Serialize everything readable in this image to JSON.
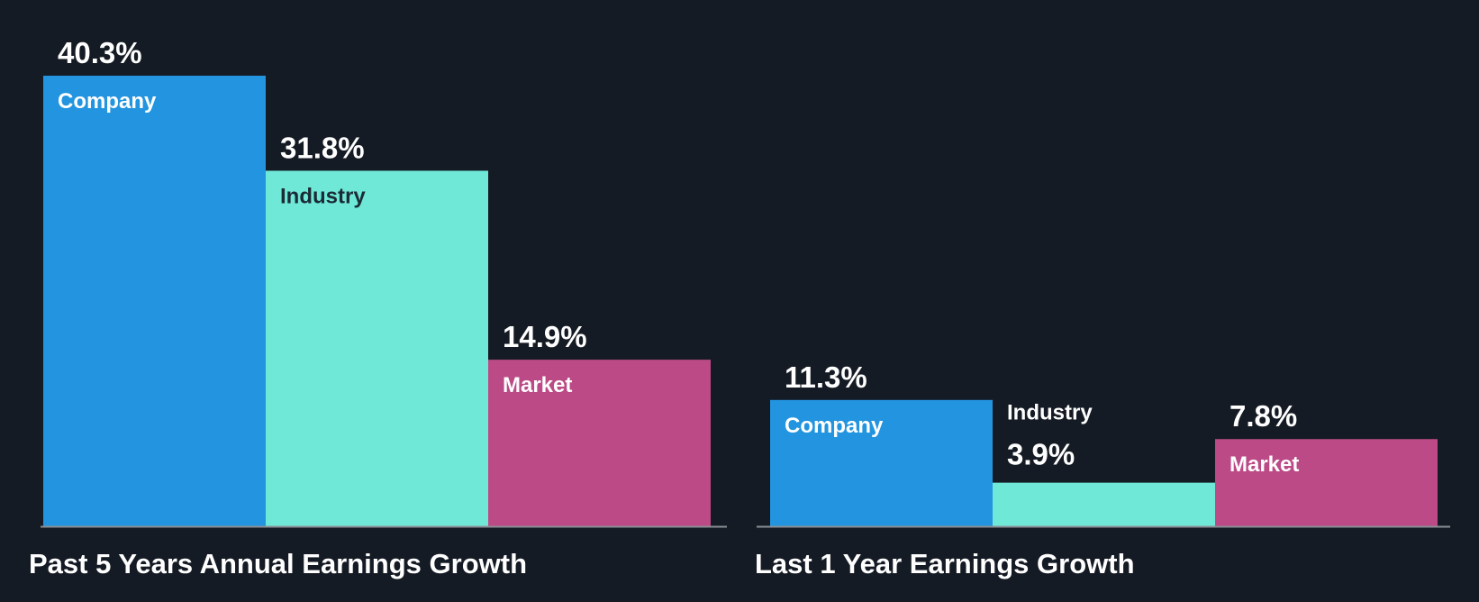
{
  "chart_data": [
    {
      "type": "bar",
      "title": "Past 5 Years Annual Earnings Growth",
      "categories": [
        "Company",
        "Industry",
        "Market"
      ],
      "values": [
        40.3,
        31.8,
        14.9
      ],
      "value_labels": [
        "40.3%",
        "31.8%",
        "14.9%"
      ],
      "ylim": [
        0,
        40.3
      ]
    },
    {
      "type": "bar",
      "title": "Last 1 Year Earnings Growth",
      "categories": [
        "Company",
        "Industry",
        "Market"
      ],
      "values": [
        11.3,
        3.9,
        7.8
      ],
      "value_labels": [
        "11.3%",
        "3.9%",
        "7.8%"
      ],
      "ylim": [
        0,
        40.3
      ]
    }
  ],
  "colors": {
    "background": "#151b24",
    "company": "#2394df",
    "industry": "#6fe8d8",
    "market": "#bb4a86",
    "axis": "#8a8f96",
    "text_light": "#ffffff",
    "text_dark": "#1b2b35"
  }
}
